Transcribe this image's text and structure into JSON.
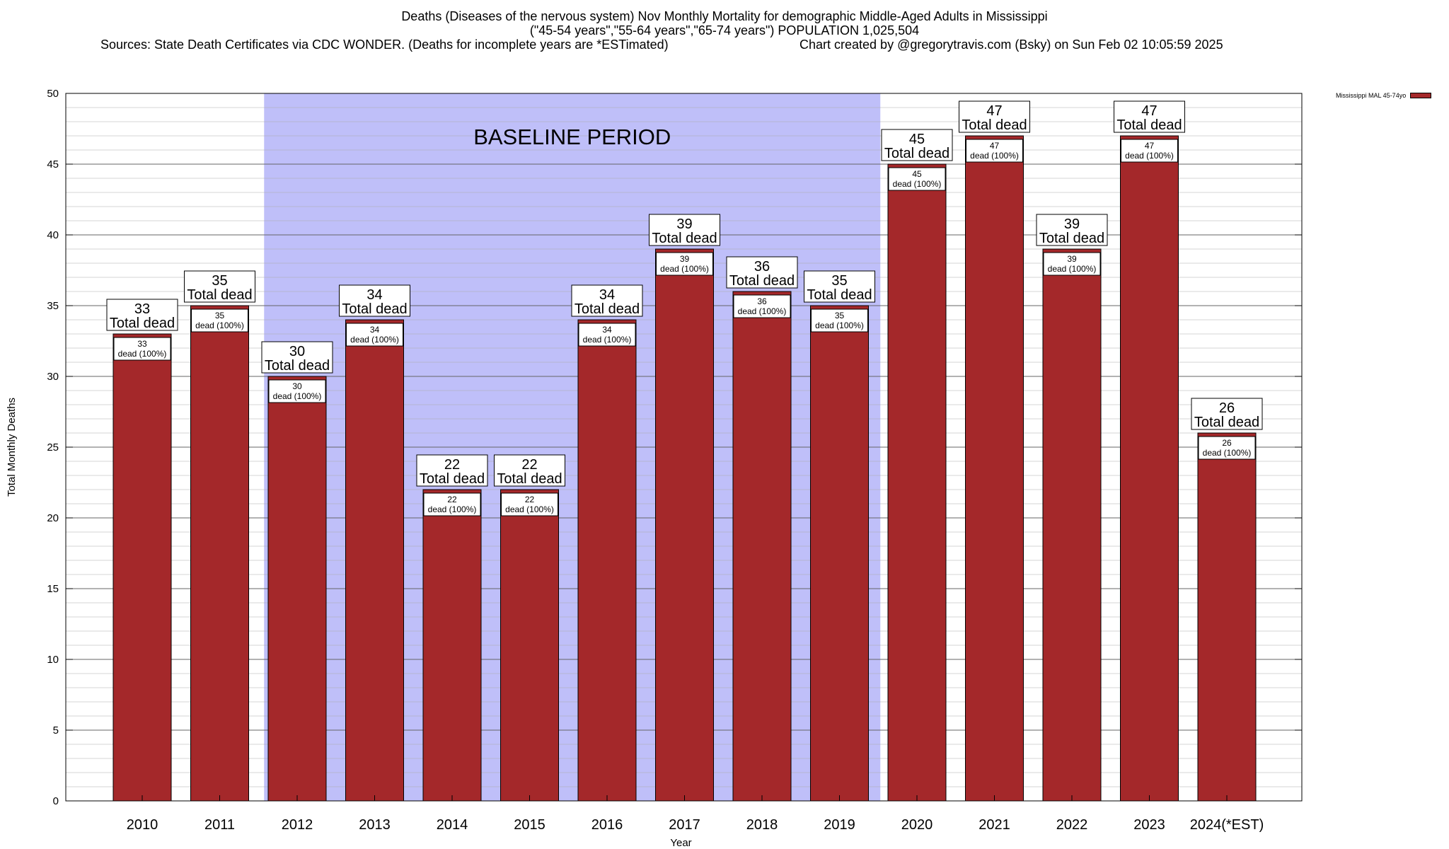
{
  "header": {
    "title_line1": "Deaths (Diseases of the nervous system) Nov Monthly Mortality for demographic Middle-Aged Adults in Mississippi",
    "title_line2": "(\"45-54 years\",\"55-64 years\",\"65-74 years\") POPULATION 1,025,504",
    "sources": "Sources: State Death Certificates via CDC WONDER. (Deaths for incomplete years are *ESTimated)",
    "credit": "Chart created by @gregorytravis.com (Bsky) on Sun Feb 02 10:05:59 2025"
  },
  "colors": {
    "bar": "#a4282a",
    "baseline_band": "#bfbff9"
  },
  "chart_data": {
    "type": "bar",
    "categories": [
      "2010",
      "2011",
      "2012",
      "2013",
      "2014",
      "2015",
      "2016",
      "2017",
      "2018",
      "2019",
      "2020",
      "2021",
      "2022",
      "2023",
      "2024(*EST)"
    ],
    "series": [
      {
        "name": "Mississippi MAL 45-74yo",
        "values": [
          33,
          35,
          30,
          34,
          22,
          22,
          34,
          39,
          36,
          35,
          45,
          47,
          39,
          47,
          26
        ]
      }
    ],
    "total_label": "Total dead",
    "inner_label": "dead (100%)",
    "xlabel": "Year",
    "ylabel": "Total Monthly Deaths",
    "ylim": [
      0,
      50
    ],
    "yticks": [
      0,
      5,
      10,
      15,
      20,
      25,
      30,
      35,
      40,
      45,
      50
    ],
    "minor_grid_step": 1,
    "baseline_band": {
      "label": "BASELINE PERIOD",
      "from": "2012",
      "to": "2019"
    },
    "legend_position": "top-right"
  }
}
